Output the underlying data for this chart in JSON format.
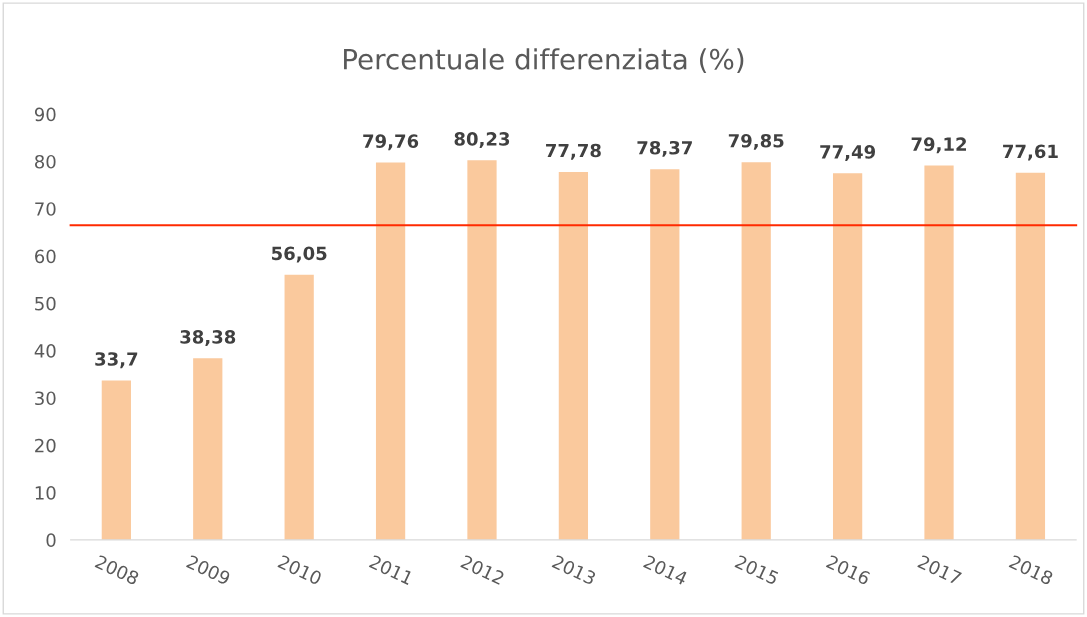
{
  "chart_data": {
    "type": "bar",
    "title": "Percentuale differenziata (%)",
    "categories": [
      "2008",
      "2009",
      "2010",
      "2011",
      "2012",
      "2013",
      "2014",
      "2015",
      "2016",
      "2017",
      "2018"
    ],
    "series": [
      {
        "color": "#fac99d",
        "values": [
          33.7,
          38.38,
          56.05,
          79.76,
          80.23,
          77.78,
          78.37,
          79.85,
          77.49,
          79.12,
          77.61
        ],
        "value_labels": [
          "33,7",
          "38,38",
          "56,05",
          "79,76",
          "80,23",
          "77,78",
          "78,37",
          "79,85",
          "77,49",
          "79,12",
          "77,61"
        ]
      }
    ],
    "ylim": [
      0,
      90
    ],
    "yticks": [
      0,
      10,
      20,
      30,
      40,
      50,
      60,
      70,
      80,
      90
    ],
    "ref_lines": [
      {
        "axis": "y",
        "value": 66.5,
        "color": "#ff2a00",
        "line_style": "solid"
      }
    ],
    "grid": false,
    "legend": false
  }
}
